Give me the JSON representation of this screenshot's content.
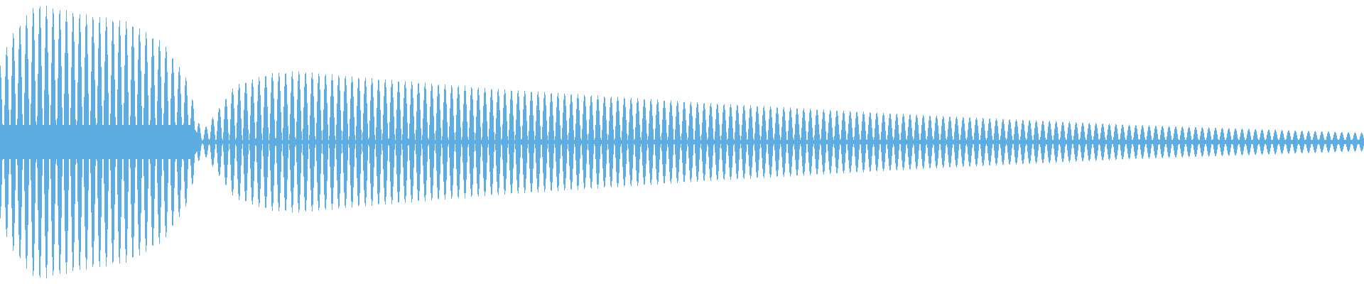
{
  "chart_data": {
    "type": "waveform",
    "title": "",
    "axes": "none",
    "grid": false,
    "legend": "none",
    "color": "#5dade2",
    "background": "#ffffff"
  }
}
